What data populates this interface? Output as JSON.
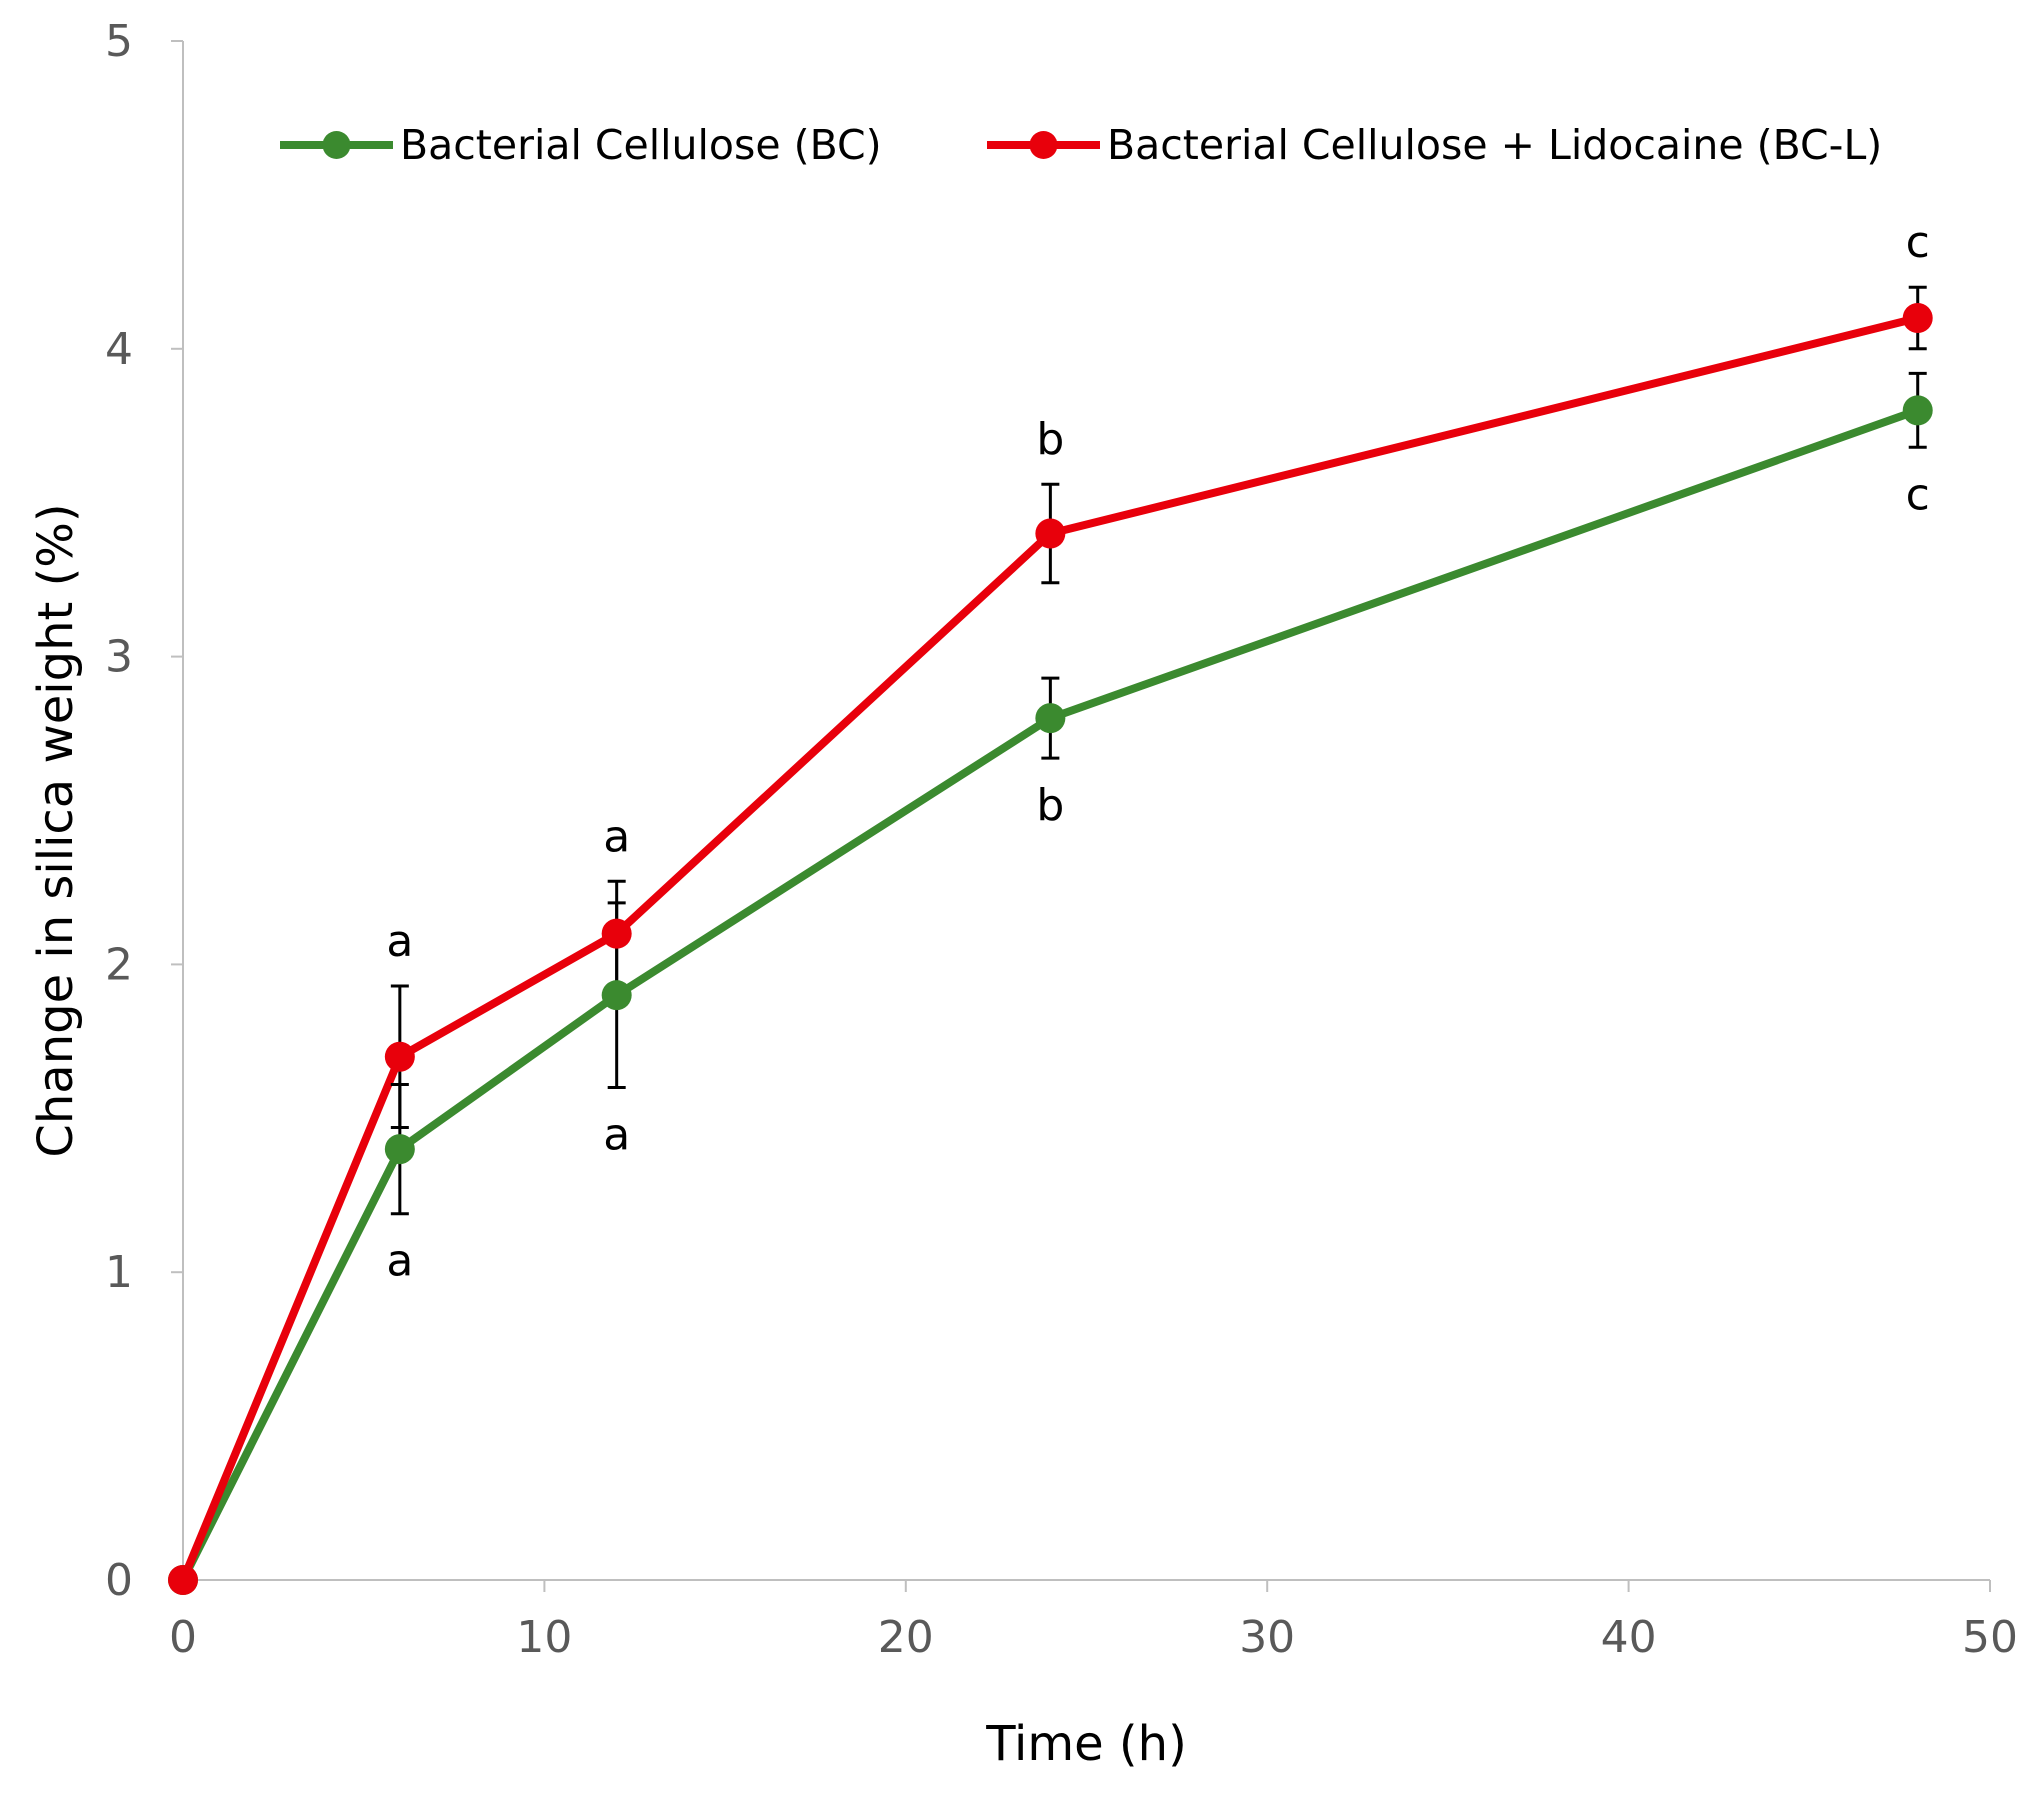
{
  "chart_data": {
    "type": "line",
    "title": "",
    "xlabel": "Time (h)",
    "ylabel": "Change in silica weight (%)",
    "xlim": [
      0,
      50
    ],
    "ylim": [
      0,
      5
    ],
    "xticks": [
      "0",
      "10",
      "20",
      "30",
      "40",
      "50"
    ],
    "yticks": [
      "0",
      "1",
      "2",
      "3",
      "4",
      "5"
    ],
    "grid": false,
    "legend_position": "top",
    "series": [
      {
        "name": "Bacterial Cellulose (BC)",
        "color": "#3b8a2f",
        "x": [
          0,
          6,
          12,
          24,
          48
        ],
        "y": [
          0,
          1.4,
          1.9,
          2.8,
          3.8
        ],
        "error": [
          0,
          0.21,
          0.3,
          0.13,
          0.12
        ],
        "labels": [
          "",
          "a",
          "a",
          "b",
          "c"
        ],
        "label_position": "below"
      },
      {
        "name": "Bacterial Cellulose + Lidocaine (BC-L)",
        "color": "#e8000b",
        "x": [
          0,
          6,
          12,
          24,
          48
        ],
        "y": [
          0,
          1.7,
          2.1,
          3.4,
          4.1
        ],
        "error": [
          0,
          0.23,
          0.17,
          0.16,
          0.1
        ],
        "labels": [
          "",
          "a",
          "a",
          "b",
          "c"
        ],
        "label_position": "above"
      }
    ]
  }
}
